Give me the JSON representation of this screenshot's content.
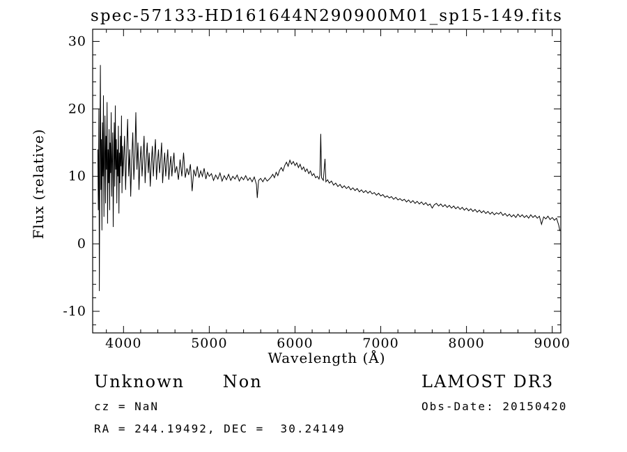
{
  "footer": {
    "class_label": "Unknown",
    "subclass_label": "Non",
    "survey_label": "LAMOST DR3",
    "cz_line": "cz = NaN",
    "obs_date_line": "Obs-Date: 20150420",
    "coords_line": "RA = 244.19492, DEC =  30.24149"
  },
  "chart_data": {
    "type": "line",
    "title": "spec-57133-HD161644N290900M01_sp15-149.fits",
    "xlabel": "Wavelength (Å)",
    "ylabel": "Flux (relative)",
    "xlim": [
      3640,
      9100
    ],
    "ylim": [
      -13.2,
      31.8
    ],
    "xticks": [
      4000,
      5000,
      6000,
      7000,
      8000,
      9000
    ],
    "xtick_labels": [
      "4000",
      "5000",
      "6000",
      "7000",
      "8000",
      "9000"
    ],
    "yticks": [
      -10,
      0,
      10,
      20,
      30
    ],
    "ytick_labels": [
      "-10",
      "0",
      "10",
      "20",
      "30"
    ],
    "x_minor_step": 200,
    "y_minor_step": 2,
    "grid": false,
    "legend": null,
    "line_color": "#000000",
    "series": [
      {
        "name": "spectrum",
        "x": [
          3700,
          3706,
          3712,
          3718,
          3724,
          3730,
          3736,
          3742,
          3748,
          3754,
          3760,
          3766,
          3772,
          3778,
          3784,
          3790,
          3796,
          3802,
          3808,
          3814,
          3820,
          3826,
          3832,
          3838,
          3844,
          3850,
          3856,
          3862,
          3868,
          3874,
          3880,
          3886,
          3892,
          3898,
          3904,
          3910,
          3916,
          3922,
          3928,
          3934,
          3940,
          3946,
          3952,
          3958,
          3964,
          3970,
          3976,
          3982,
          3988,
          3994,
          4000,
          4012,
          4024,
          4036,
          4048,
          4060,
          4072,
          4084,
          4096,
          4108,
          4120,
          4132,
          4144,
          4156,
          4168,
          4180,
          4192,
          4204,
          4216,
          4228,
          4240,
          4252,
          4264,
          4276,
          4288,
          4300,
          4312,
          4324,
          4336,
          4348,
          4360,
          4372,
          4384,
          4396,
          4408,
          4420,
          4432,
          4444,
          4456,
          4468,
          4480,
          4492,
          4504,
          4516,
          4528,
          4540,
          4552,
          4564,
          4576,
          4588,
          4600,
          4620,
          4640,
          4660,
          4680,
          4700,
          4720,
          4740,
          4760,
          4780,
          4800,
          4820,
          4840,
          4860,
          4880,
          4900,
          4920,
          4940,
          4960,
          4980,
          5000,
          5025,
          5050,
          5075,
          5100,
          5125,
          5150,
          5175,
          5200,
          5225,
          5250,
          5275,
          5300,
          5325,
          5350,
          5375,
          5400,
          5425,
          5450,
          5475,
          5500,
          5525,
          5550,
          5560,
          5575,
          5600,
          5625,
          5650,
          5675,
          5700,
          5720,
          5740,
          5760,
          5780,
          5800,
          5820,
          5840,
          5860,
          5880,
          5900,
          5920,
          5940,
          5960,
          5980,
          6000,
          6020,
          6040,
          6060,
          6080,
          6100,
          6120,
          6140,
          6160,
          6180,
          6200,
          6220,
          6240,
          6260,
          6280,
          6290,
          6300,
          6310,
          6330,
          6350,
          6360,
          6380,
          6400,
          6425,
          6450,
          6475,
          6500,
          6525,
          6550,
          6575,
          6600,
          6625,
          6650,
          6675,
          6700,
          6725,
          6750,
          6775,
          6800,
          6825,
          6850,
          6875,
          6900,
          6925,
          6950,
          6975,
          7000,
          7025,
          7050,
          7075,
          7100,
          7125,
          7150,
          7175,
          7200,
          7225,
          7250,
          7275,
          7300,
          7325,
          7350,
          7375,
          7400,
          7425,
          7450,
          7475,
          7500,
          7525,
          7550,
          7575,
          7600,
          7625,
          7650,
          7675,
          7700,
          7725,
          7750,
          7775,
          7800,
          7825,
          7850,
          7875,
          7900,
          7925,
          7950,
          7975,
          8000,
          8025,
          8050,
          8075,
          8100,
          8125,
          8150,
          8175,
          8200,
          8225,
          8250,
          8275,
          8300,
          8325,
          8350,
          8375,
          8400,
          8425,
          8450,
          8475,
          8500,
          8525,
          8550,
          8575,
          8600,
          8625,
          8650,
          8675,
          8700,
          8725,
          8750,
          8775,
          8800,
          8825,
          8850,
          8875,
          8900,
          8925,
          8950,
          8975,
          9000,
          9025,
          9050,
          9075,
          9090
        ],
        "y": [
          14,
          5,
          20,
          -7,
          12,
          26.5,
          8,
          15.5,
          2,
          18,
          10,
          22,
          4,
          13,
          19,
          6,
          16,
          11,
          21,
          3,
          14,
          9,
          17,
          5,
          15,
          10.5,
          19.5,
          7,
          13,
          16.5,
          2.5,
          12,
          18,
          8.5,
          20.5,
          11,
          15.5,
          6,
          14,
          10,
          17.5,
          4.5,
          13.5,
          9,
          16,
          11.5,
          19,
          7.5,
          14.5,
          10,
          12,
          16,
          8,
          13.5,
          18.5,
          10,
          14,
          7,
          12.5,
          16.5,
          9.5,
          13,
          19.5,
          11,
          15,
          8,
          12,
          14.5,
          10,
          13,
          16,
          9,
          12.5,
          15,
          10.5,
          13.5,
          8.5,
          12,
          14.5,
          10,
          13,
          15.5,
          9.5,
          12,
          14,
          10.5,
          12.5,
          15,
          9,
          11.5,
          13.5,
          10,
          12,
          14,
          9.5,
          11.5,
          13,
          10,
          12,
          13.5,
          10.5,
          11.5,
          9.5,
          12.5,
          10,
          13.5,
          9.8,
          11.2,
          10.2,
          11.8,
          7.8,
          11,
          10,
          11.5,
          9.8,
          10.8,
          10,
          11.2,
          9.6,
          10.6,
          10,
          10.4,
          9.4,
          10.2,
          9.6,
          10.5,
          9.3,
          10.1,
          9.5,
          10.3,
          9.4,
          10,
          9.6,
          10.2,
          9.3,
          9.9,
          9.5,
          10.1,
          9.4,
          9.8,
          9.2,
          9.9,
          8.8,
          6.8,
          9.4,
          9.7,
          9.2,
          9.8,
          9.3,
          9.6,
          9.9,
          10.3,
          9.8,
          10.6,
          10.1,
          10.9,
          11.3,
          10.8,
          11.6,
          12.1,
          11.5,
          12.4,
          11.8,
          12.2,
          11.6,
          12,
          11.3,
          11.8,
          11,
          11.4,
          10.7,
          11.1,
          10.4,
          10.8,
          10.1,
          10.4,
          9.8,
          10,
          9.6,
          10.2,
          16.3,
          9.8,
          9.4,
          12.6,
          9.2,
          9.5,
          9,
          9.3,
          8.7,
          9,
          8.5,
          8.8,
          8.3,
          8.6,
          8.2,
          8.5,
          8,
          8.3,
          7.9,
          8.2,
          7.7,
          8,
          7.6,
          7.9,
          7.5,
          7.8,
          7.4,
          7.6,
          7.2,
          7.5,
          7.1,
          7.3,
          6.9,
          7.1,
          6.8,
          7.0,
          6.6,
          6.9,
          6.5,
          6.7,
          6.4,
          6.6,
          6.2,
          6.5,
          6.1,
          6.4,
          6.0,
          6.3,
          5.9,
          6.2,
          5.8,
          6.1,
          5.7,
          5.9,
          5.3,
          5.8,
          6.0,
          5.6,
          5.9,
          5.5,
          5.8,
          5.4,
          5.7,
          5.3,
          5.6,
          5.2,
          5.5,
          5.1,
          5.4,
          5.0,
          5.3,
          4.9,
          5.2,
          4.8,
          5.1,
          4.7,
          5.0,
          4.6,
          4.9,
          4.5,
          4.8,
          4.4,
          4.7,
          4.3,
          4.6,
          4.4,
          4.7,
          4.2,
          4.5,
          4.1,
          4.4,
          4.0,
          4.3,
          3.9,
          4.4,
          4.0,
          4.3,
          3.9,
          4.2,
          3.8,
          4.3,
          3.9,
          4.2,
          3.8,
          4.1,
          2.9,
          4.0,
          3.7,
          4.1,
          3.6,
          3.9,
          3.5,
          3.8,
          2.8,
          1.9
        ]
      }
    ]
  }
}
